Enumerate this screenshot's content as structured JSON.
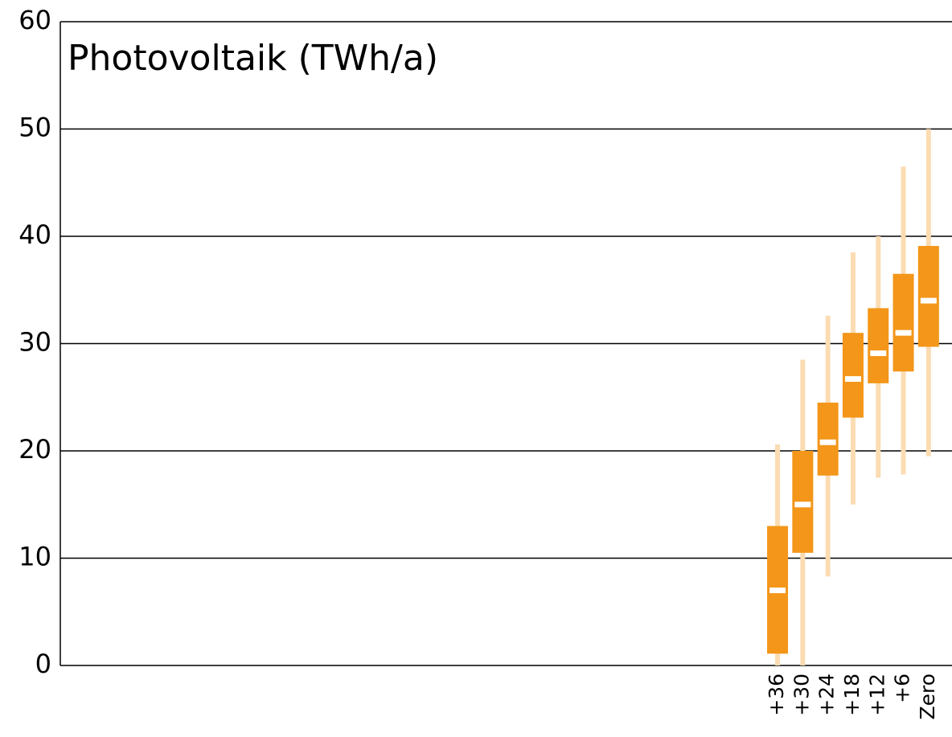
{
  "chart_data": {
    "type": "box",
    "title": "Photovoltaik (TWh/a)",
    "categories": [
      null,
      null,
      null,
      null,
      null,
      null,
      null,
      null,
      null,
      null,
      null,
      null,
      null,
      null,
      null,
      null,
      null,
      null,
      null,
      null,
      null,
      null,
      null,
      null,
      null,
      null,
      null,
      null,
      "+36",
      "+30",
      "+24",
      "+18",
      "+12",
      "+6",
      "Zero"
    ],
    "whisker_low": [
      null,
      null,
      null,
      null,
      null,
      null,
      null,
      null,
      null,
      null,
      null,
      null,
      null,
      null,
      null,
      null,
      null,
      null,
      null,
      null,
      null,
      null,
      null,
      null,
      null,
      null,
      null,
      null,
      0,
      0,
      8.3,
      15,
      17.5,
      17.8,
      19.5
    ],
    "box_low": [
      null,
      null,
      null,
      null,
      null,
      null,
      null,
      null,
      null,
      null,
      null,
      null,
      null,
      null,
      null,
      null,
      null,
      null,
      null,
      null,
      null,
      null,
      null,
      null,
      null,
      null,
      null,
      null,
      1.1,
      10.5,
      17.7,
      23.1,
      26.3,
      27.4,
      29.7
    ],
    "median": [
      null,
      null,
      null,
      null,
      null,
      null,
      null,
      null,
      null,
      null,
      null,
      null,
      null,
      null,
      null,
      null,
      null,
      null,
      null,
      null,
      null,
      null,
      null,
      null,
      null,
      null,
      null,
      null,
      7,
      15,
      20.8,
      26.7,
      29.1,
      31,
      34
    ],
    "box_high": [
      null,
      null,
      null,
      null,
      null,
      null,
      null,
      null,
      null,
      null,
      null,
      null,
      null,
      null,
      null,
      null,
      null,
      null,
      null,
      null,
      null,
      null,
      null,
      null,
      null,
      null,
      null,
      null,
      13,
      20,
      24.5,
      31,
      33.3,
      36.5,
      39.1
    ],
    "whisker_high": [
      null,
      null,
      null,
      null,
      null,
      null,
      null,
      null,
      null,
      null,
      null,
      null,
      null,
      null,
      null,
      null,
      null,
      null,
      null,
      null,
      null,
      null,
      null,
      null,
      null,
      null,
      null,
      null,
      20.6,
      28.5,
      32.6,
      38.5,
      40,
      46.5,
      50
    ],
    "box_color": "#f39619",
    "whisker_color": "#fbdcb3",
    "median_color": "#ffffff",
    "ylim": [
      0,
      60
    ],
    "yticks": [
      0,
      10,
      20,
      30,
      40,
      50,
      60
    ],
    "grid": true
  }
}
